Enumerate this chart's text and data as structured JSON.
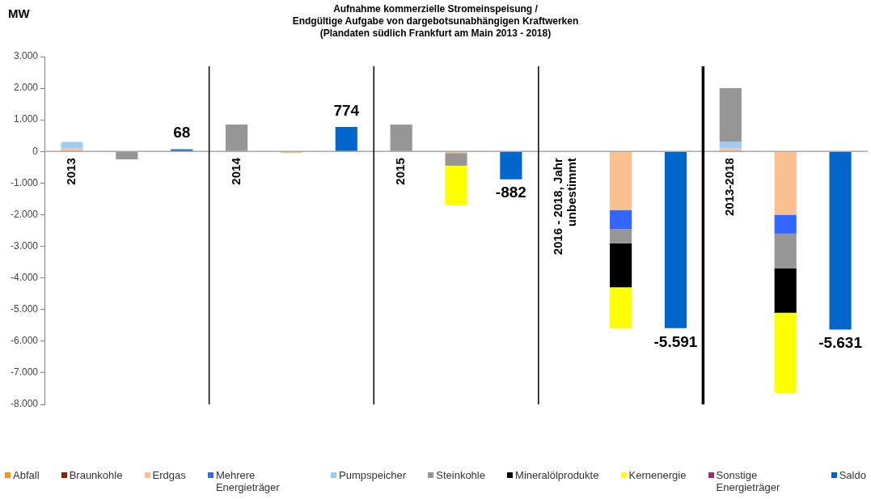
{
  "chart_data": {
    "type": "bar",
    "title": "Aufnahme kommerzielle Stromeinspeisung /\nEndgültige Aufgabe von dargebotsunabhängigen Kraftwerken\n(Plandaten südlich Frankfurt am Main 2013 - 2018)",
    "ylabel": "MW",
    "categories": [
      "2013",
      null,
      null,
      "2014",
      null,
      null,
      "2015",
      null,
      null,
      "2016 - 2018, Jahr unbestimmt",
      null,
      null,
      "2013-2018",
      null,
      null
    ],
    "stacked": true,
    "legend": "bottom",
    "ylim": [
      -8000,
      3000
    ],
    "yticks": [
      {
        "value": -8000,
        "label": "-8.000"
      },
      {
        "value": -7000,
        "label": "-7.000"
      },
      {
        "value": -6000,
        "label": "-6.000"
      },
      {
        "value": -5000,
        "label": "-5.000"
      },
      {
        "value": -4000,
        "label": "-4.000"
      },
      {
        "value": -3000,
        "label": "-3.000"
      },
      {
        "value": -2000,
        "label": "-2.000"
      },
      {
        "value": -1000,
        "label": "-1.000"
      },
      {
        "value": 0,
        "label": "0"
      },
      {
        "value": 1000,
        "label": "1.000"
      },
      {
        "value": 2000,
        "label": "2.000"
      },
      {
        "value": 3000,
        "label": "3.000"
      }
    ],
    "series": [
      {
        "name": "Abfall",
        "color": "#f7941d",
        "values": [
          null,
          null,
          null,
          null,
          null,
          null,
          null,
          null,
          null,
          null,
          null,
          null,
          null,
          null,
          null
        ]
      },
      {
        "name": "Braunkohle",
        "color": "#8b2500",
        "values": [
          null,
          null,
          null,
          null,
          null,
          null,
          null,
          null,
          null,
          null,
          null,
          null,
          null,
          null,
          null
        ]
      },
      {
        "name": "Erdgas",
        "color": "#fac090",
        "values": [
          100,
          null,
          null,
          null,
          -50,
          null,
          null,
          -50,
          null,
          null,
          -1850,
          null,
          100,
          -2000,
          null
        ]
      },
      {
        "name": "Mehrere Energieträger",
        "color": "#3366ff",
        "values": [
          null,
          null,
          null,
          null,
          null,
          null,
          null,
          null,
          null,
          null,
          -600,
          null,
          null,
          -600,
          null
        ]
      },
      {
        "name": "Pumpspeicher",
        "color": "#99ccff",
        "values": [
          200,
          null,
          null,
          null,
          null,
          null,
          null,
          null,
          null,
          null,
          null,
          null,
          200,
          null,
          null
        ]
      },
      {
        "name": "Steinkohle",
        "color": "#969696",
        "values": [
          null,
          -250,
          null,
          850,
          null,
          null,
          850,
          -400,
          null,
          null,
          -450,
          null,
          1700,
          -1100,
          null
        ]
      },
      {
        "name": "Mineralölprodukte",
        "color": "#000000",
        "values": [
          null,
          null,
          null,
          null,
          null,
          null,
          null,
          null,
          null,
          null,
          -1400,
          null,
          null,
          -1400,
          null
        ]
      },
      {
        "name": "Kernenergie",
        "color": "#ffff00",
        "values": [
          null,
          null,
          null,
          null,
          null,
          null,
          null,
          -1250,
          null,
          null,
          -1300,
          null,
          null,
          -2550,
          null
        ]
      },
      {
        "name": "Sonstige Energieträger",
        "color": "#993366",
        "values": [
          null,
          null,
          null,
          null,
          null,
          null,
          null,
          null,
          null,
          null,
          null,
          null,
          null,
          null,
          null
        ]
      },
      {
        "name": "Saldo",
        "color": "#0066cc",
        "values": [
          null,
          null,
          68,
          null,
          null,
          774,
          null,
          null,
          -882,
          null,
          null,
          -5591,
          null,
          null,
          -5631
        ],
        "value_labels": [
          null,
          null,
          "68",
          null,
          null,
          "774",
          null,
          null,
          "-882",
          null,
          null,
          "-5.591",
          null,
          null,
          "-5.631"
        ]
      }
    ]
  }
}
